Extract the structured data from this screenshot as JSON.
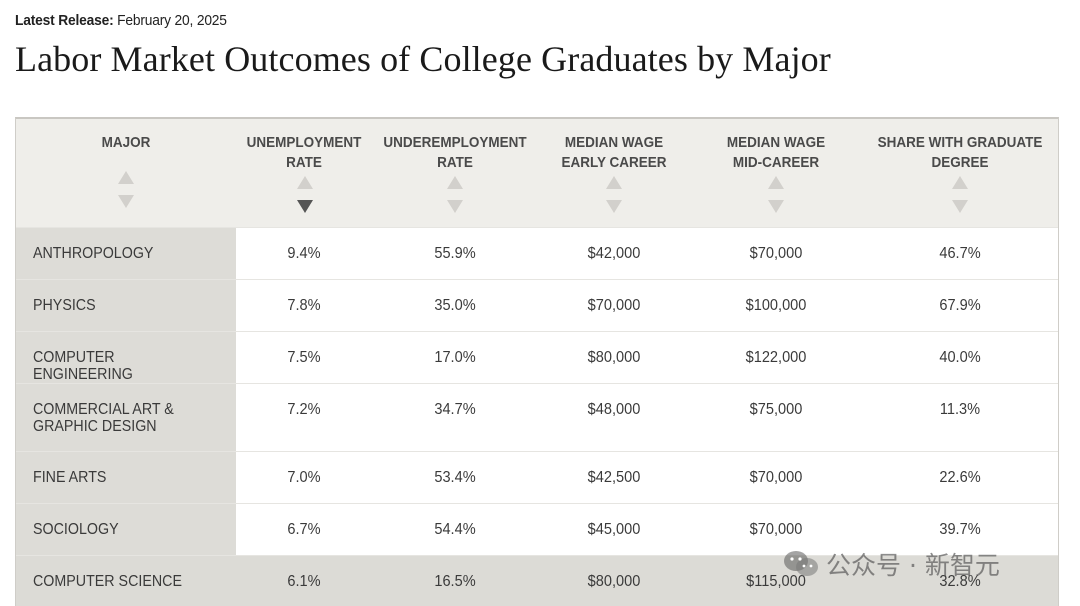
{
  "release": {
    "label": "Latest Release:",
    "date": "February 20, 2025"
  },
  "title": "Labor Market Outcomes of College Graduates by Major",
  "table": {
    "columns": [
      {
        "line1": "MAJOR",
        "line2": ""
      },
      {
        "line1": "UNEMPLOYMENT",
        "line2": "RATE"
      },
      {
        "line1": "UNDEREMPLOYMENT",
        "line2": "RATE"
      },
      {
        "line1": "MEDIAN WAGE",
        "line2": "EARLY CAREER"
      },
      {
        "line1": "MEDIAN WAGE",
        "line2": "MID-CAREER"
      },
      {
        "line1": "SHARE WITH GRADUATE",
        "line2": "DEGREE"
      }
    ],
    "sorted_column": "UNEMPLOYMENT RATE",
    "sort_direction": "descending",
    "rows": [
      {
        "major_line1": "ANTHROPOLOGY",
        "major_line2": "",
        "unemployment": "9.4%",
        "underemployment": "55.9%",
        "wage_early": "$42,000",
        "wage_mid": "$70,000",
        "grad_share": "46.7%"
      },
      {
        "major_line1": "PHYSICS",
        "major_line2": "",
        "unemployment": "7.8%",
        "underemployment": "35.0%",
        "wage_early": "$70,000",
        "wage_mid": "$100,000",
        "grad_share": "67.9%"
      },
      {
        "major_line1": "COMPUTER ENGINEERING",
        "major_line2": "",
        "unemployment": "7.5%",
        "underemployment": "17.0%",
        "wage_early": "$80,000",
        "wage_mid": "$122,000",
        "grad_share": "40.0%"
      },
      {
        "major_line1": "COMMERCIAL ART &",
        "major_line2": "GRAPHIC DESIGN",
        "unemployment": "7.2%",
        "underemployment": "34.7%",
        "wage_early": "$48,000",
        "wage_mid": "$75,000",
        "grad_share": "11.3%"
      },
      {
        "major_line1": "FINE ARTS",
        "major_line2": "",
        "unemployment": "7.0%",
        "underemployment": "53.4%",
        "wage_early": "$42,500",
        "wage_mid": "$70,000",
        "grad_share": "22.6%"
      },
      {
        "major_line1": "SOCIOLOGY",
        "major_line2": "",
        "unemployment": "6.7%",
        "underemployment": "54.4%",
        "wage_early": "$45,000",
        "wage_mid": "$70,000",
        "grad_share": "39.7%"
      },
      {
        "major_line1": "COMPUTER SCIENCE",
        "major_line2": "",
        "unemployment": "6.1%",
        "underemployment": "16.5%",
        "wage_early": "$80,000",
        "wage_mid": "$115,000",
        "grad_share": "32.8%"
      }
    ]
  },
  "watermark": {
    "text": "公众号 · 新智元",
    "icon": "wechat-icon"
  },
  "colors": {
    "header_bg": "#efeeea",
    "major_col_bg": "#dddcd7",
    "highlight_row": "#dcdbd6",
    "active_sort": "#555555"
  }
}
